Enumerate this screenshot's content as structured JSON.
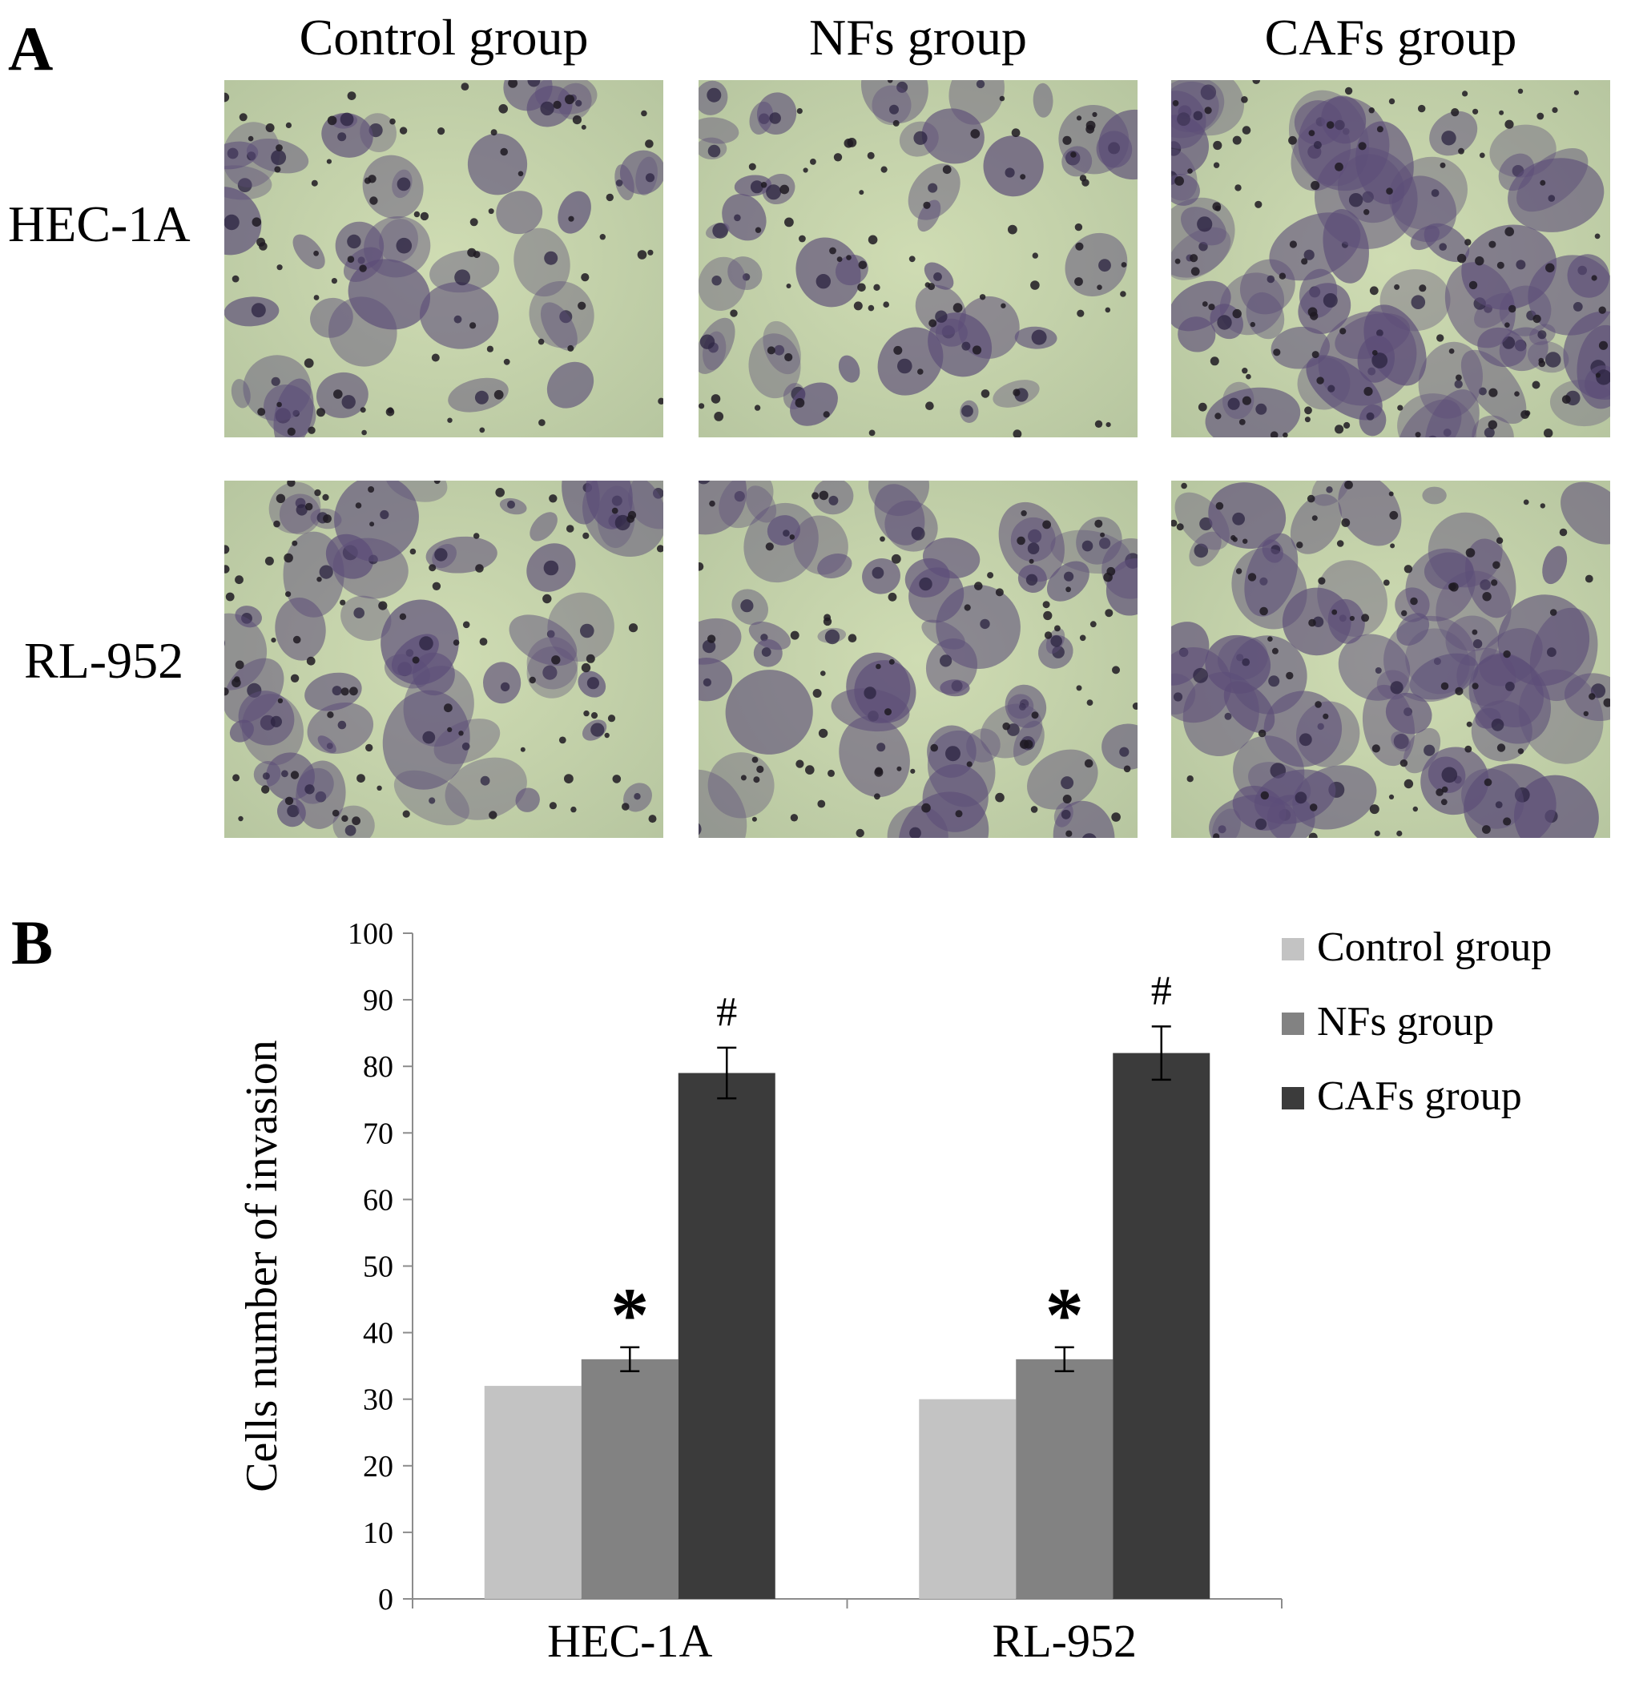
{
  "panel_a": {
    "letter": "A",
    "columns": [
      "Control group",
      "NFs group",
      "CAFs group"
    ],
    "rows": [
      "HEC-1A",
      "RL-952"
    ],
    "image_tone": {
      "background": "#b7c6a0",
      "light": "#cfdcb3",
      "stain": "#5c4d78",
      "dark": "#2b2340"
    },
    "stain_density": [
      [
        0.35,
        0.38,
        0.8
      ],
      [
        0.55,
        0.6,
        0.75
      ]
    ]
  },
  "panel_b": {
    "letter": "B"
  },
  "chart_data": {
    "type": "bar",
    "title": "",
    "xlabel": "",
    "ylabel": "Cells number of invasion",
    "categories": [
      "HEC-1A",
      "RL-952"
    ],
    "ylim": [
      0,
      100
    ],
    "yticks": [
      "0",
      "10",
      "20",
      "30",
      "40",
      "50",
      "60",
      "70",
      "80",
      "90",
      "100"
    ],
    "grid": false,
    "legend_position": "top-right",
    "series": [
      {
        "name": "Control group",
        "color": "#c3c3c3",
        "values": [
          32,
          30
        ],
        "errors": [
          0,
          0
        ],
        "marks": [
          "",
          ""
        ]
      },
      {
        "name": "NFs group",
        "color": "#828282",
        "values": [
          36,
          36
        ],
        "errors": [
          1.8,
          1.8
        ],
        "marks": [
          "*",
          "*"
        ]
      },
      {
        "name": "CAFs group",
        "color": "#3b3b3b",
        "values": [
          79,
          82
        ],
        "errors": [
          3.8,
          4.0
        ],
        "marks": [
          "#",
          "#"
        ]
      }
    ]
  }
}
